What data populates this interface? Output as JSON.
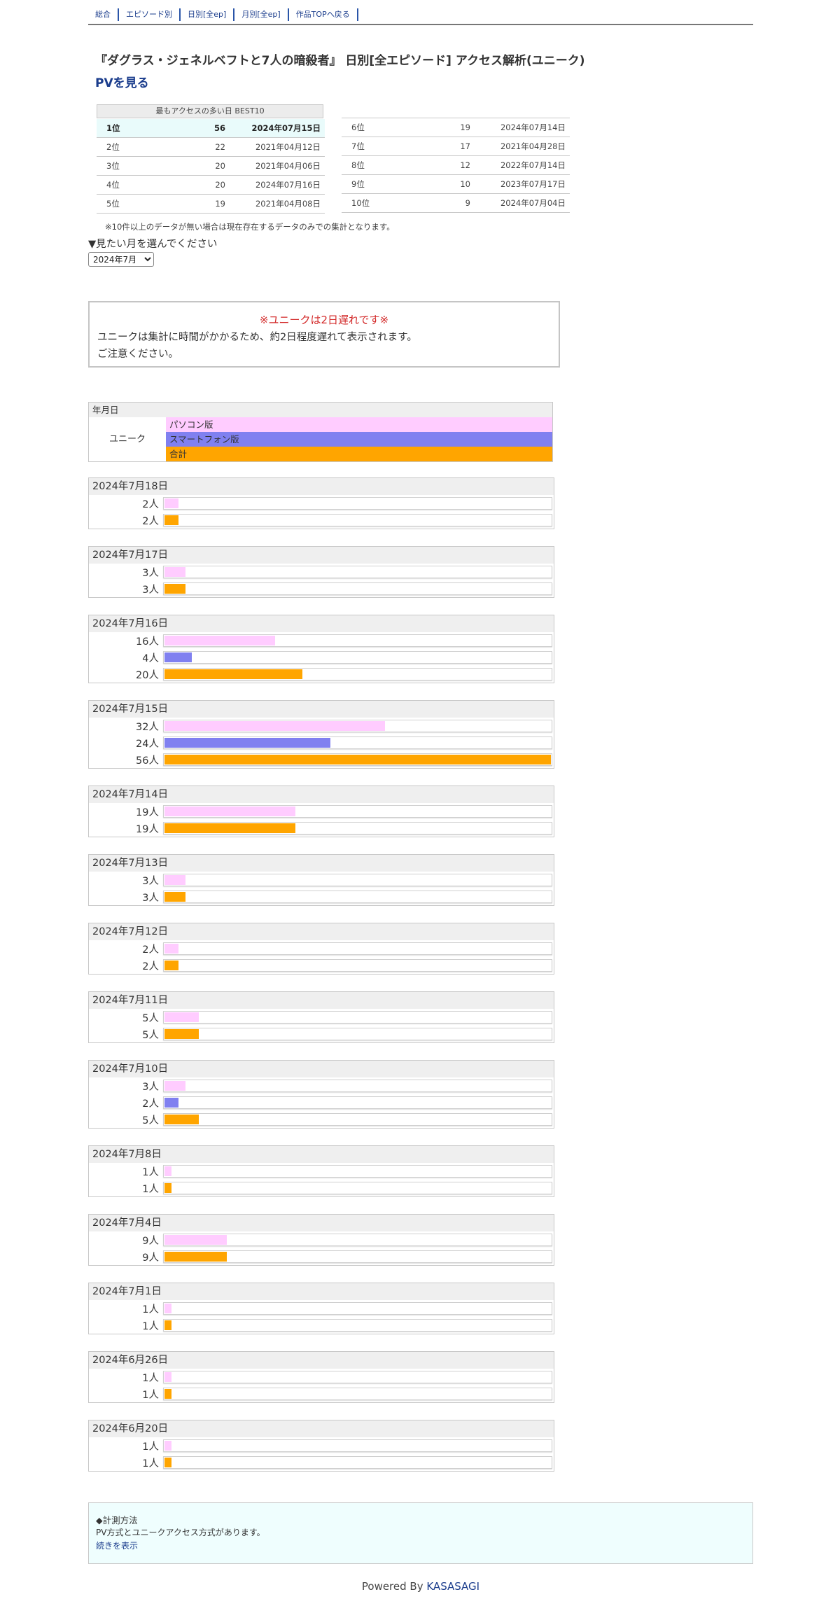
{
  "nav": [
    {
      "label": "総合"
    },
    {
      "label": "エピソード別"
    },
    {
      "label": "日別[全ep]"
    },
    {
      "label": "月別[全ep]"
    },
    {
      "label": "作品TOPへ戻る"
    }
  ],
  "title": "『ダグラス・ジェネルベフトと7人の暗殺者』 日別[全エピソード] アクセス解析(ユニーク)",
  "pv_link": "PVを見る",
  "best10": {
    "heading": "最もアクセスの多い日 BEST10",
    "left": [
      {
        "rank": "1位",
        "count": "56",
        "date": "2024年07月15日"
      },
      {
        "rank": "2位",
        "count": "22",
        "date": "2021年04月12日"
      },
      {
        "rank": "3位",
        "count": "20",
        "date": "2021年04月06日"
      },
      {
        "rank": "4位",
        "count": "20",
        "date": "2024年07月16日"
      },
      {
        "rank": "5位",
        "count": "19",
        "date": "2021年04月08日"
      }
    ],
    "right": [
      {
        "rank": "6位",
        "count": "19",
        "date": "2024年07月14日"
      },
      {
        "rank": "7位",
        "count": "17",
        "date": "2021年04月28日"
      },
      {
        "rank": "8位",
        "count": "12",
        "date": "2022年07月14日"
      },
      {
        "rank": "9位",
        "count": "10",
        "date": "2023年07月17日"
      },
      {
        "rank": "10位",
        "count": "9",
        "date": "2024年07月04日"
      }
    ],
    "note": "※10件以上のデータが無い場合は現在存在するデータのみでの集計となります。"
  },
  "month_picker": {
    "label": "▼見たい月を選んでください",
    "selected": "2024年7月"
  },
  "notice": {
    "title": "※ユニークは2日遅れです※",
    "line1": "ユニークは集計に時間がかかるため、約2日程度遅れて表示されます。",
    "line2": "ご注意ください。"
  },
  "legend": {
    "header": "年月日",
    "label": "ユニーク",
    "items": [
      {
        "label": "パソコン版",
        "color": "#ffccff"
      },
      {
        "label": "スマートフォン版",
        "color": "#8080f0"
      },
      {
        "label": "合計",
        "color": "#ffa500"
      }
    ]
  },
  "chart_data": {
    "type": "bar",
    "max_value": 56,
    "series_colors": {
      "pc": "#ffccff",
      "sp": "#8080f0",
      "total": "#ffa500"
    },
    "days": [
      {
        "date": "2024年7月18日",
        "rows": [
          {
            "series": "pc",
            "value": 2,
            "label": "2人"
          },
          {
            "series": "total",
            "value": 2,
            "label": "2人"
          }
        ]
      },
      {
        "date": "2024年7月17日",
        "rows": [
          {
            "series": "pc",
            "value": 3,
            "label": "3人"
          },
          {
            "series": "total",
            "value": 3,
            "label": "3人"
          }
        ]
      },
      {
        "date": "2024年7月16日",
        "rows": [
          {
            "series": "pc",
            "value": 16,
            "label": "16人"
          },
          {
            "series": "sp",
            "value": 4,
            "label": "4人"
          },
          {
            "series": "total",
            "value": 20,
            "label": "20人"
          }
        ]
      },
      {
        "date": "2024年7月15日",
        "rows": [
          {
            "series": "pc",
            "value": 32,
            "label": "32人"
          },
          {
            "series": "sp",
            "value": 24,
            "label": "24人"
          },
          {
            "series": "total",
            "value": 56,
            "label": "56人"
          }
        ]
      },
      {
        "date": "2024年7月14日",
        "rows": [
          {
            "series": "pc",
            "value": 19,
            "label": "19人"
          },
          {
            "series": "total",
            "value": 19,
            "label": "19人"
          }
        ]
      },
      {
        "date": "2024年7月13日",
        "rows": [
          {
            "series": "pc",
            "value": 3,
            "label": "3人"
          },
          {
            "series": "total",
            "value": 3,
            "label": "3人"
          }
        ]
      },
      {
        "date": "2024年7月12日",
        "rows": [
          {
            "series": "pc",
            "value": 2,
            "label": "2人"
          },
          {
            "series": "total",
            "value": 2,
            "label": "2人"
          }
        ]
      },
      {
        "date": "2024年7月11日",
        "rows": [
          {
            "series": "pc",
            "value": 5,
            "label": "5人"
          },
          {
            "series": "total",
            "value": 5,
            "label": "5人"
          }
        ]
      },
      {
        "date": "2024年7月10日",
        "rows": [
          {
            "series": "pc",
            "value": 3,
            "label": "3人"
          },
          {
            "series": "sp",
            "value": 2,
            "label": "2人"
          },
          {
            "series": "total",
            "value": 5,
            "label": "5人"
          }
        ]
      },
      {
        "date": "2024年7月8日",
        "rows": [
          {
            "series": "pc",
            "value": 1,
            "label": "1人"
          },
          {
            "series": "total",
            "value": 1,
            "label": "1人"
          }
        ]
      },
      {
        "date": "2024年7月4日",
        "rows": [
          {
            "series": "pc",
            "value": 9,
            "label": "9人"
          },
          {
            "series": "total",
            "value": 9,
            "label": "9人"
          }
        ]
      },
      {
        "date": "2024年7月1日",
        "rows": [
          {
            "series": "pc",
            "value": 1,
            "label": "1人"
          },
          {
            "series": "total",
            "value": 1,
            "label": "1人"
          }
        ]
      },
      {
        "date": "2024年6月26日",
        "rows": [
          {
            "series": "pc",
            "value": 1,
            "label": "1人"
          },
          {
            "series": "total",
            "value": 1,
            "label": "1人"
          }
        ]
      },
      {
        "date": "2024年6月20日",
        "rows": [
          {
            "series": "pc",
            "value": 1,
            "label": "1人"
          },
          {
            "series": "total",
            "value": 1,
            "label": "1人"
          }
        ]
      }
    ]
  },
  "footer": {
    "heading": "◆計測方法",
    "text": "PV方式とユニークアクセス方式があります。",
    "link": "続きを表示"
  },
  "powered": {
    "prefix": "Powered By ",
    "link": "KASASAGI"
  }
}
